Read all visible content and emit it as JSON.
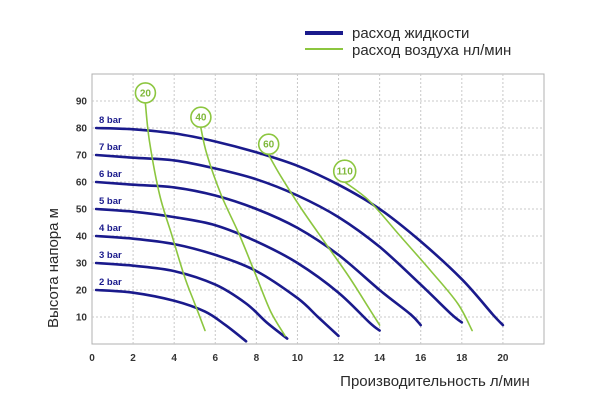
{
  "chart_data": {
    "type": "line",
    "xlabel": "Производительность  л/мин",
    "ylabel": "Высота напора м",
    "xlim": [
      0,
      22
    ],
    "ylim": [
      0,
      100
    ],
    "x_ticks": [
      "0",
      "2",
      "4",
      "6",
      "8",
      "10",
      "12",
      "14",
      "16",
      "18",
      "20"
    ],
    "y_ticks": [
      "10",
      "20",
      "30",
      "40",
      "50",
      "60",
      "70",
      "80",
      "90"
    ],
    "grid": true,
    "legend_position": "top-right",
    "legend": [
      {
        "label": "расход жидкости",
        "color": "#1a1a8c",
        "kind": "liquid"
      },
      {
        "label": "расход воздуха нл/мин",
        "color": "#8cc63f",
        "kind": "air"
      }
    ],
    "colors": {
      "liquid": "#1a1a8c",
      "air": "#8cc63f",
      "grid": "#c8c8c8",
      "frame": "#b0b0b0"
    },
    "liquid_series": [
      {
        "name": "2 bar",
        "points": [
          [
            0.2,
            20
          ],
          [
            2,
            19
          ],
          [
            4,
            16
          ],
          [
            5.5,
            12
          ],
          [
            6.5,
            7
          ],
          [
            7.5,
            1
          ]
        ]
      },
      {
        "name": "3 bar",
        "points": [
          [
            0.2,
            30
          ],
          [
            2,
            29
          ],
          [
            4,
            27
          ],
          [
            6,
            22
          ],
          [
            7.5,
            15
          ],
          [
            8.5,
            8
          ],
          [
            9.5,
            2
          ]
        ]
      },
      {
        "name": "4 bar",
        "points": [
          [
            0.2,
            40
          ],
          [
            2,
            39
          ],
          [
            4,
            37
          ],
          [
            6,
            33
          ],
          [
            8,
            27
          ],
          [
            10,
            17
          ],
          [
            11,
            10
          ],
          [
            12,
            3
          ]
        ]
      },
      {
        "name": "5 bar",
        "points": [
          [
            0.2,
            50
          ],
          [
            2,
            49
          ],
          [
            4,
            47
          ],
          [
            6,
            44
          ],
          [
            8,
            38
          ],
          [
            10,
            30
          ],
          [
            12,
            19
          ],
          [
            13.5,
            8
          ],
          [
            14,
            5
          ]
        ]
      },
      {
        "name": "6 bar",
        "points": [
          [
            0.2,
            60
          ],
          [
            2,
            59
          ],
          [
            4,
            58
          ],
          [
            6,
            55
          ],
          [
            8,
            50
          ],
          [
            10,
            43
          ],
          [
            12,
            33
          ],
          [
            14,
            20
          ],
          [
            15.5,
            11
          ],
          [
            16,
            7
          ]
        ]
      },
      {
        "name": "7 bar",
        "points": [
          [
            0.2,
            70
          ],
          [
            2,
            69
          ],
          [
            4,
            68
          ],
          [
            6,
            65
          ],
          [
            8,
            61
          ],
          [
            10,
            55
          ],
          [
            12,
            47
          ],
          [
            14,
            36
          ],
          [
            16,
            22
          ],
          [
            17.5,
            11
          ],
          [
            18,
            8
          ]
        ]
      },
      {
        "name": "8 bar",
        "points": [
          [
            0.2,
            80
          ],
          [
            2,
            79.5
          ],
          [
            4,
            78
          ],
          [
            6,
            75
          ],
          [
            8,
            71
          ],
          [
            10,
            66
          ],
          [
            12,
            59
          ],
          [
            14,
            50
          ],
          [
            16,
            38
          ],
          [
            18,
            24
          ],
          [
            19.5,
            11
          ],
          [
            20,
            7
          ]
        ]
      }
    ],
    "air_series": [
      {
        "name": "20",
        "label_at": [
          2.6,
          93
        ],
        "points": [
          [
            2.6,
            89
          ],
          [
            2.8,
            75
          ],
          [
            3.3,
            55
          ],
          [
            3.9,
            40
          ],
          [
            4.5,
            25
          ],
          [
            5,
            15
          ],
          [
            5.5,
            5
          ]
        ]
      },
      {
        "name": "40",
        "label_at": [
          5.3,
          84
        ],
        "points": [
          [
            5.3,
            80
          ],
          [
            5.6,
            70
          ],
          [
            6.3,
            55
          ],
          [
            7.2,
            40
          ],
          [
            8,
            25
          ],
          [
            8.7,
            12
          ],
          [
            9.4,
            3
          ]
        ]
      },
      {
        "name": "60",
        "label_at": [
          8.6,
          74
        ],
        "points": [
          [
            8.6,
            70
          ],
          [
            9.2,
            62
          ],
          [
            10.2,
            50
          ],
          [
            11.3,
            38
          ],
          [
            12.5,
            25
          ],
          [
            13.5,
            13
          ],
          [
            14,
            7
          ]
        ]
      },
      {
        "name": "110",
        "label_at": [
          12.3,
          64
        ],
        "points": [
          [
            12.3,
            60
          ],
          [
            13.5,
            53
          ],
          [
            15,
            40
          ],
          [
            16.5,
            27
          ],
          [
            17.8,
            15
          ],
          [
            18.5,
            5
          ]
        ]
      }
    ]
  }
}
